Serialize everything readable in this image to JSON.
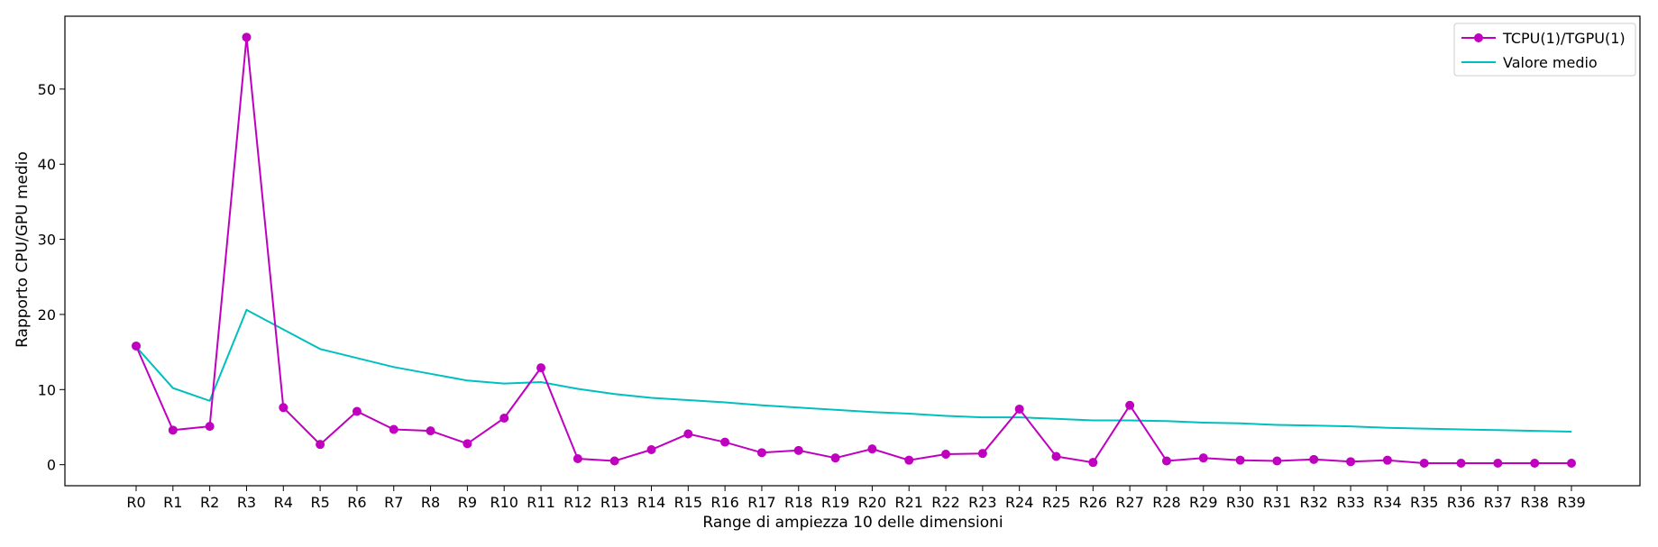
{
  "chart_data": {
    "type": "line",
    "title": "",
    "xlabel": "Range di ampiezza 10 delle dimensioni",
    "ylabel": "Rapporto CPU/GPU medio",
    "ylim": [
      -2.8,
      59.7
    ],
    "yticks": [
      0,
      10,
      20,
      30,
      40,
      50
    ],
    "grid": false,
    "legend_position": "top-right",
    "categories": [
      "R0",
      "R1",
      "R2",
      "R3",
      "R4",
      "R5",
      "R6",
      "R7",
      "R8",
      "R9",
      "R10",
      "R11",
      "R12",
      "R13",
      "R14",
      "R15",
      "R16",
      "R17",
      "R18",
      "R19",
      "R20",
      "R21",
      "R22",
      "R23",
      "R24",
      "R25",
      "R26",
      "R27",
      "R28",
      "R29",
      "R30",
      "R31",
      "R32",
      "R33",
      "R34",
      "R35",
      "R36",
      "R37",
      "R38",
      "R39"
    ],
    "series": [
      {
        "name": "TCPU(1)/TGPU(1)",
        "color": "#bf00bf",
        "marker": "circle",
        "values": [
          15.8,
          4.6,
          5.1,
          56.9,
          7.6,
          2.7,
          7.1,
          4.7,
          4.5,
          2.8,
          6.2,
          12.9,
          0.8,
          0.5,
          2.0,
          4.1,
          3.0,
          1.6,
          1.9,
          0.9,
          2.1,
          0.6,
          1.4,
          1.5,
          7.4,
          1.1,
          0.3,
          7.9,
          0.5,
          0.9,
          0.6,
          0.5,
          0.7,
          0.4,
          0.6,
          0.2,
          0.2,
          0.2,
          0.2,
          0.2
        ]
      },
      {
        "name": "Valore medio",
        "color": "#00bfbf",
        "marker": "none",
        "values": [
          15.7,
          10.2,
          8.5,
          20.6,
          18.0,
          15.4,
          14.2,
          13.0,
          12.1,
          11.2,
          10.8,
          11.0,
          10.1,
          9.4,
          8.9,
          8.6,
          8.3,
          7.9,
          7.6,
          7.3,
          7.0,
          6.8,
          6.5,
          6.3,
          6.3,
          6.1,
          5.9,
          5.9,
          5.8,
          5.6,
          5.5,
          5.3,
          5.2,
          5.1,
          4.9,
          4.8,
          4.7,
          4.6,
          4.5,
          4.4
        ]
      }
    ]
  }
}
